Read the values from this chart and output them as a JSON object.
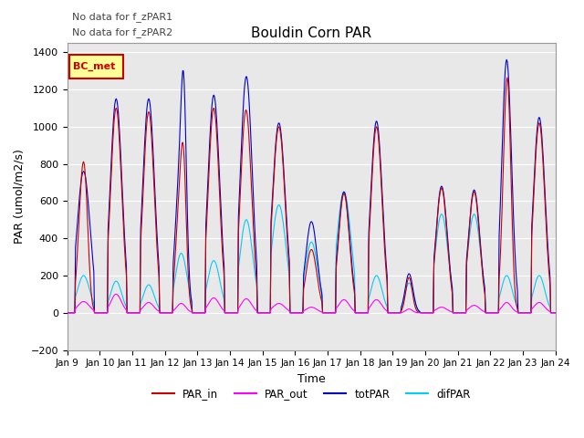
{
  "title": "Bouldin Corn PAR",
  "xlabel": "Time",
  "ylabel": "PAR (umol/m2/s)",
  "ylim": [
    -200,
    1450
  ],
  "yticks": [
    -200,
    0,
    200,
    400,
    600,
    800,
    1000,
    1200,
    1400
  ],
  "annotation_lines": [
    "No data for f_zPAR1",
    "No data for f_zPAR2"
  ],
  "legend_box_label": "BC_met",
  "legend_box_color": "#cc0000",
  "legend_box_bg": "#ffff99",
  "background_color": "#e8e8e8",
  "colors": {
    "PAR_in": "#cc0000",
    "PAR_out": "#ff00ff",
    "totPAR": "#0000cc",
    "difPAR": "#00ccff"
  },
  "xtick_labels": [
    "Jan 9",
    "Jan 10",
    "Jan 11",
    "Jan 12",
    "Jan 13",
    "Jan 14",
    "Jan 15",
    "Jan 16",
    "Jan 17",
    "Jan 18",
    "Jan 19",
    "Jan 20",
    "Jan 21",
    "Jan 22",
    "Jan 23",
    "Jan 24"
  ],
  "n_days": 15,
  "dt_hours": 0.5,
  "figsize": [
    6.4,
    4.8
  ],
  "dpi": 100
}
